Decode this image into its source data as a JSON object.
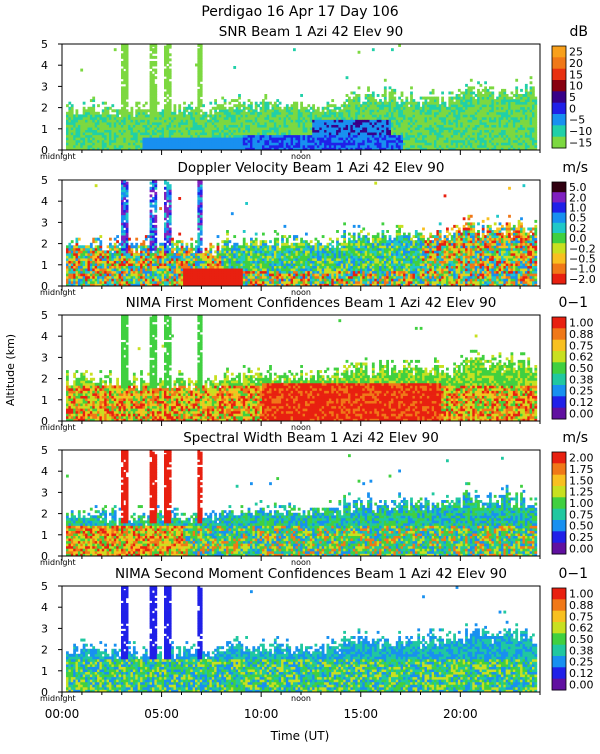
{
  "header": {
    "title_line1": "Perdigao  16 Apr 17 Day 106"
  },
  "y_axis_label": "Altitude (km)",
  "x_axis": {
    "label": "Time (UT)",
    "ticks": [
      "00:00",
      "05:00",
      "10:00",
      "15:00",
      "20:00"
    ],
    "tick_hours": [
      0,
      5,
      10,
      15,
      20
    ],
    "range_hours": [
      0,
      24
    ],
    "midnight_label": "midnight",
    "noon_label": "noon"
  },
  "chart_data": [
    {
      "type": "heatmap",
      "title": "SNR Beam 1 Azi  42 Elev 90",
      "unit": "dB",
      "field": "snr",
      "ylabel": "Altitude (km)",
      "yticks": [
        "0",
        "1",
        "2",
        "3",
        "4",
        "5"
      ],
      "ylim": [
        0,
        5
      ],
      "xlim": [
        0,
        24
      ],
      "colorbar": [
        "25",
        "20",
        "15",
        "10",
        "5",
        "0",
        "−5",
        "−10",
        "−15"
      ],
      "colors": [
        "#f8a01c",
        "#f07818",
        "#e83010",
        "#880010",
        "#380088",
        "#2020e8",
        "#1890f0",
        "#20d0a8",
        "#7cd840"
      ]
    },
    {
      "type": "heatmap",
      "title": "Doppler Velocity Beam 1 Azi  42 Elev 90",
      "unit": "m/s",
      "field": "velocity",
      "ylabel": "Altitude (km)",
      "yticks": [
        "0",
        "1",
        "2",
        "3",
        "4",
        "5"
      ],
      "ylim": [
        0,
        5
      ],
      "xlim": [
        0,
        24
      ],
      "colorbar": [
        "5.0",
        "2.0",
        "1.0",
        "0.5",
        "0.2",
        "0.0",
        "−0.2",
        "−0.5",
        "−1.0",
        "−2.0"
      ],
      "colors": [
        "#300010",
        "#8020c0",
        "#2020e8",
        "#1890f0",
        "#20c8c8",
        "#40d040",
        "#c8e020",
        "#f8c020",
        "#f07818",
        "#e82010"
      ]
    },
    {
      "type": "heatmap",
      "title": "NIMA First Moment Confidences Beam 1 Azi  42 Elev 90",
      "unit": "0−1",
      "field": "conf1",
      "ylabel": "Altitude (km)",
      "yticks": [
        "0",
        "1",
        "2",
        "3",
        "4",
        "5"
      ],
      "ylim": [
        0,
        5
      ],
      "xlim": [
        0,
        24
      ],
      "colorbar": [
        "1.00",
        "0.88",
        "0.75",
        "0.62",
        "0.50",
        "0.38",
        "0.25",
        "0.12",
        "0.00"
      ],
      "colors": [
        "#e82010",
        "#f07818",
        "#f8c020",
        "#c8e020",
        "#40d040",
        "#20c8a0",
        "#1890f0",
        "#2020e8",
        "#6010a0"
      ]
    },
    {
      "type": "heatmap",
      "title": "Spectral Width Beam 1 Azi  42 Elev 90",
      "unit": "m/s",
      "field": "width",
      "ylabel": "Altitude (km)",
      "yticks": [
        "0",
        "1",
        "2",
        "3",
        "4",
        "5"
      ],
      "ylim": [
        0,
        5
      ],
      "xlim": [
        0,
        24
      ],
      "colorbar": [
        "2.00",
        "1.75",
        "1.50",
        "1.25",
        "1.00",
        "0.75",
        "0.50",
        "0.25",
        "0.00"
      ],
      "colors": [
        "#e82010",
        "#f07818",
        "#f8c020",
        "#c8e020",
        "#40d040",
        "#20c8a0",
        "#1890f0",
        "#2020e8",
        "#6010a0"
      ]
    },
    {
      "type": "heatmap",
      "title": "NIMA Second Moment Confidences Beam 1 Azi  42 Elev 90",
      "unit": "0−1",
      "field": "conf2",
      "ylabel": "Altitude (km)",
      "yticks": [
        "0",
        "1",
        "2",
        "3",
        "4",
        "5"
      ],
      "ylim": [
        0,
        5
      ],
      "xlim": [
        0,
        24
      ],
      "colorbar": [
        "1.00",
        "0.88",
        "0.75",
        "0.62",
        "0.50",
        "0.38",
        "0.25",
        "0.12",
        "0.00"
      ],
      "colors": [
        "#e82010",
        "#f07818",
        "#f8c020",
        "#c8e020",
        "#40d040",
        "#20c8a0",
        "#1890f0",
        "#2020e8",
        "#6010a0"
      ]
    }
  ]
}
